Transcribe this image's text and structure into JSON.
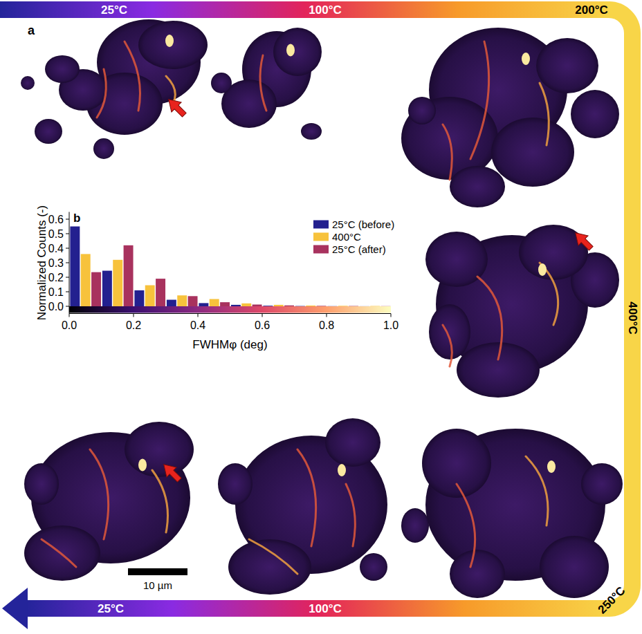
{
  "figure": {
    "panel_labels": [
      "a",
      "b"
    ],
    "top_temperatures": [
      "25°C",
      "100°C",
      "200°C"
    ],
    "side_temperature": "400°C",
    "bottom_temperatures": [
      "250°C",
      "100°C",
      "25°C"
    ],
    "scale_bar": "10 µm"
  },
  "chart_data": {
    "type": "histogram",
    "x_label": "FWHMφ (deg)",
    "y_label": "Normalized Counts (-)",
    "bins": [
      0,
      0.1,
      0.2,
      0.3,
      0.4,
      0.5,
      0.6,
      0.7,
      0.8,
      0.9,
      1.0
    ],
    "series": [
      {
        "name": "25°C (before)",
        "color": "#23208f",
        "values": [
          0.55,
          0.245,
          0.11,
          0.045,
          0.022,
          0.01,
          0.004,
          0.002,
          0.001,
          0.0005
        ]
      },
      {
        "name": "400°C",
        "color": "#f7c23c",
        "values": [
          0.36,
          0.32,
          0.145,
          0.075,
          0.05,
          0.02,
          0.01,
          0.005,
          0.003,
          0.002
        ]
      },
      {
        "name": "25°C (after)",
        "color": "#a8325e",
        "values": [
          0.235,
          0.42,
          0.19,
          0.07,
          0.028,
          0.012,
          0.006,
          0.003,
          0.002,
          0.001
        ]
      }
    ],
    "xlim": [
      0,
      1
    ],
    "ylim": [
      -0.05,
      0.65
    ],
    "xticks": [
      {
        "value": 0,
        "label": "0.0"
      },
      0.2,
      0.4,
      0.6,
      0.8,
      {
        "value": 1,
        "label": "1.0"
      }
    ],
    "yticks": [
      {
        "value": 0,
        "label": "0.0"
      },
      0.1,
      0.2,
      0.3,
      0.4,
      0.5,
      0.6
    ],
    "legend": "top-right",
    "colorbar_range": [
      0,
      1
    ]
  }
}
